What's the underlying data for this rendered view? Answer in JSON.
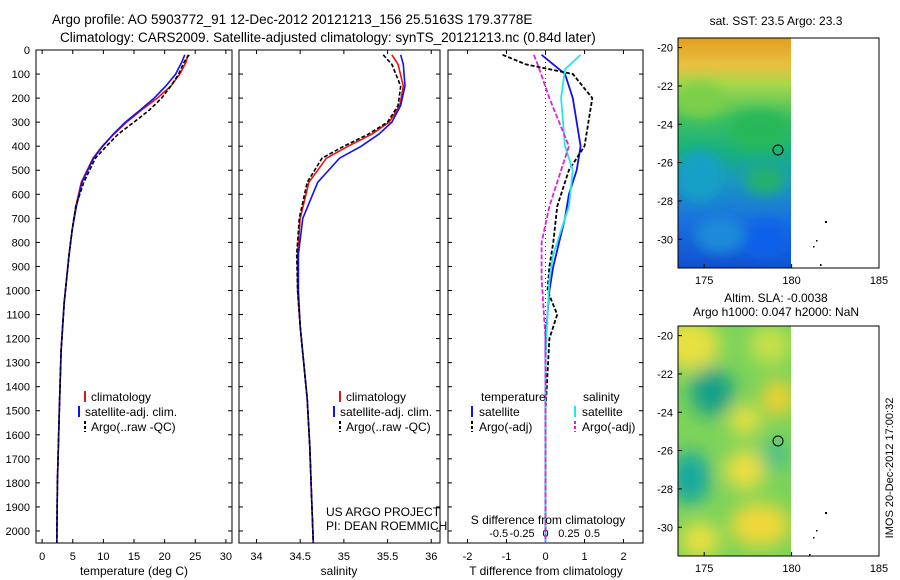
{
  "header": {
    "line1": "Argo profile: AO 5903772_91 12-Dec-2012 20121213_156 25.5163S 179.3778E",
    "line2": "Climatology: CARS2009. Satellite-adjusted climatology: synTS_20121213.nc (0.84d later)"
  },
  "sidebar_stamp": "IMOS 20-Dec-2012 17:00:32",
  "credit": {
    "line1": "US ARGO PROJECT",
    "line2": "PI: DEAN ROEMMICH"
  },
  "colors": {
    "climatology": "#ee1111",
    "satellite": "#1111ee",
    "argo": "#000000",
    "satellite_salinity": "#22e8e8",
    "argo_salinity": "#dd22dd"
  },
  "chart_data": [
    {
      "type": "line",
      "xlabel": "temperature (deg C)",
      "ylabel": "",
      "xlim": [
        -1,
        31
      ],
      "ylim": [
        2050,
        0
      ],
      "xticks": [
        "0",
        "5",
        "10",
        "15",
        "20",
        "25",
        "30"
      ],
      "yticks": [
        "0",
        "100",
        "200",
        "300",
        "400",
        "500",
        "600",
        "700",
        "800",
        "900",
        "1000",
        "1100",
        "1200",
        "1300",
        "1400",
        "1500",
        "1600",
        "1700",
        "1800",
        "1900",
        "2000"
      ],
      "legend_items": [
        "climatology",
        "satellite-adj. clim.",
        "Argo(..raw -QC)"
      ],
      "legend": "bottom-center",
      "series": [
        {
          "name": "climatology",
          "x": [
            23.8,
            23.5,
            22.5,
            21.0,
            18.8,
            16.2,
            13.8,
            11.7,
            9.8,
            8.3,
            6.4,
            5.5,
            4.9,
            4.4,
            3.6,
            3.1,
            2.8,
            2.5,
            2.4
          ],
          "y": [
            20,
            50,
            100,
            150,
            200,
            250,
            300,
            350,
            400,
            450,
            550,
            650,
            750,
            850,
            1050,
            1250,
            1500,
            1800,
            2050
          ]
        },
        {
          "name": "satellite-adj. clim.",
          "x": [
            23.3,
            22.8,
            21.8,
            20.2,
            18.3,
            16.0,
            13.6,
            11.6,
            9.9,
            8.4,
            6.5,
            5.6,
            4.9,
            4.4,
            3.6,
            3.1,
            2.8,
            2.5,
            2.4
          ],
          "y": [
            20,
            50,
            100,
            150,
            200,
            250,
            300,
            350,
            400,
            450,
            550,
            650,
            750,
            850,
            1050,
            1250,
            1500,
            1800,
            2050
          ]
        },
        {
          "name": "Argo(..raw -QC)",
          "x": [
            24.0,
            23.2,
            22.3,
            21.0,
            19.5,
            17.5,
            15.0,
            12.4,
            10.5,
            8.7,
            6.8,
            5.5,
            4.9,
            4.4,
            3.6,
            3.1,
            2.8,
            2.5,
            2.4
          ],
          "y": [
            20,
            50,
            100,
            150,
            200,
            250,
            300,
            350,
            400,
            450,
            550,
            650,
            750,
            850,
            1050,
            1250,
            1500,
            1800,
            2050
          ]
        }
      ]
    },
    {
      "type": "line",
      "xlabel": "salinity",
      "xlim": [
        33.8,
        36.1
      ],
      "ylim": [
        2050,
        0
      ],
      "xticks": [
        "34",
        "34.5",
        "35",
        "35.5",
        "36"
      ],
      "legend_items": [
        "climatology",
        "satellite-adj. clim.",
        "Argo(..raw -QC)"
      ],
      "legend": "bottom-center",
      "series": [
        {
          "name": "climatology",
          "x": [
            35.55,
            35.62,
            35.68,
            35.64,
            35.52,
            35.32,
            35.05,
            34.8,
            34.6,
            34.5,
            34.47,
            34.47,
            34.5,
            34.54,
            34.58,
            34.61,
            34.63,
            34.65
          ],
          "y": [
            20,
            60,
            150,
            230,
            300,
            350,
            400,
            450,
            550,
            700,
            850,
            1000,
            1150,
            1300,
            1450,
            1650,
            1850,
            2050
          ]
        },
        {
          "name": "satellite-adj. clim.",
          "x": [
            35.65,
            35.68,
            35.7,
            35.65,
            35.55,
            35.4,
            35.2,
            34.95,
            34.7,
            34.53,
            34.48,
            34.48,
            34.5,
            34.54,
            34.58,
            34.61,
            34.63,
            34.65
          ],
          "y": [
            20,
            60,
            150,
            230,
            300,
            350,
            400,
            450,
            550,
            700,
            850,
            1000,
            1150,
            1300,
            1450,
            1650,
            1850,
            2050
          ]
        },
        {
          "name": "Argo(..raw -QC)",
          "x": [
            35.45,
            35.55,
            35.65,
            35.62,
            35.5,
            35.28,
            35.0,
            34.75,
            34.58,
            34.49,
            34.46,
            34.47,
            34.5,
            34.54,
            34.58,
            34.61,
            34.63,
            34.65
          ],
          "y": [
            20,
            60,
            150,
            230,
            300,
            350,
            400,
            450,
            550,
            700,
            850,
            1000,
            1150,
            1300,
            1450,
            1650,
            1850,
            2050
          ]
        }
      ]
    },
    {
      "type": "line",
      "xlabel": "T difference from climatology",
      "x2label": "S difference from climatology",
      "xlim": [
        -2.5,
        2.5
      ],
      "ylim": [
        2050,
        0
      ],
      "xticks": [
        "-2",
        "-1",
        "0",
        "1",
        "2"
      ],
      "x2ticks": [
        "-0.5",
        "-0.25",
        "0",
        "0.25",
        "0.5"
      ],
      "legend_headers": [
        "temperature",
        "salinity"
      ],
      "legend_items": [
        "satellite",
        "Argo(-adj)",
        "satellite",
        "Argo(-adj)"
      ],
      "legend": "bottom",
      "series": [
        {
          "name": "temperature satellite",
          "x": [
            -0.1,
            0.5,
            0.7,
            0.9,
            0.8,
            0.6,
            0.5,
            0.35,
            0.2,
            0.1,
            0.05,
            0.0,
            0.0,
            0.0,
            0.0
          ],
          "y": [
            20,
            100,
            200,
            400,
            500,
            600,
            700,
            800,
            900,
            1000,
            1100,
            1200,
            1400,
            1700,
            2050
          ]
        },
        {
          "name": "temperature Argo(-adj)",
          "x": [
            -1.1,
            -0.5,
            0.7,
            1.2,
            1.0,
            0.6,
            0.3,
            0.2,
            0.1,
            0.05,
            0.3,
            0.1,
            0.0,
            0.0
          ],
          "y": [
            20,
            60,
            100,
            200,
            400,
            500,
            650,
            800,
            900,
            1000,
            1100,
            1200,
            1500,
            2050
          ]
        },
        {
          "name": "salinity satellite",
          "x": [
            0.9,
            0.5,
            0.4,
            0.5,
            0.7,
            0.6,
            0.4,
            0.2,
            0.1,
            0.05,
            0.0,
            0.0,
            0.0
          ],
          "y": [
            20,
            80,
            200,
            400,
            500,
            650,
            750,
            850,
            950,
            1100,
            1300,
            1600,
            2050
          ]
        },
        {
          "name": "salinity Argo(-adj)",
          "x": [
            -0.3,
            -0.2,
            0.1,
            0.6,
            0.4,
            0.1,
            -0.1,
            -0.1,
            0.0,
            0.0,
            0.0
          ],
          "y": [
            20,
            60,
            200,
            400,
            500,
            650,
            800,
            950,
            1200,
            1500,
            2050
          ]
        }
      ]
    },
    {
      "type": "heatmap",
      "title": "sat. SST: 23.5  Argo: 23.3",
      "xlim": [
        173.5,
        185
      ],
      "ylim": [
        -31.5,
        -19.5
      ],
      "xticks": [
        "175",
        "180",
        "185"
      ],
      "yticks": [
        "-20",
        "-22",
        "-24",
        "-26",
        "-28",
        "-30"
      ],
      "float_position": {
        "lon": 179.3778,
        "lat": -25.5163
      }
    },
    {
      "type": "heatmap",
      "title": "Altim. SLA: -0.0038",
      "subtitle": "Argo h1000: 0.047 h2000: NaN",
      "xlim": [
        173.5,
        185
      ],
      "ylim": [
        -31.5,
        -19.5
      ],
      "xticks": [
        "175",
        "180",
        "185"
      ],
      "yticks": [
        "-20",
        "-22",
        "-24",
        "-26",
        "-28",
        "-30"
      ],
      "float_position": {
        "lon": 179.3778,
        "lat": -25.5163
      }
    }
  ]
}
